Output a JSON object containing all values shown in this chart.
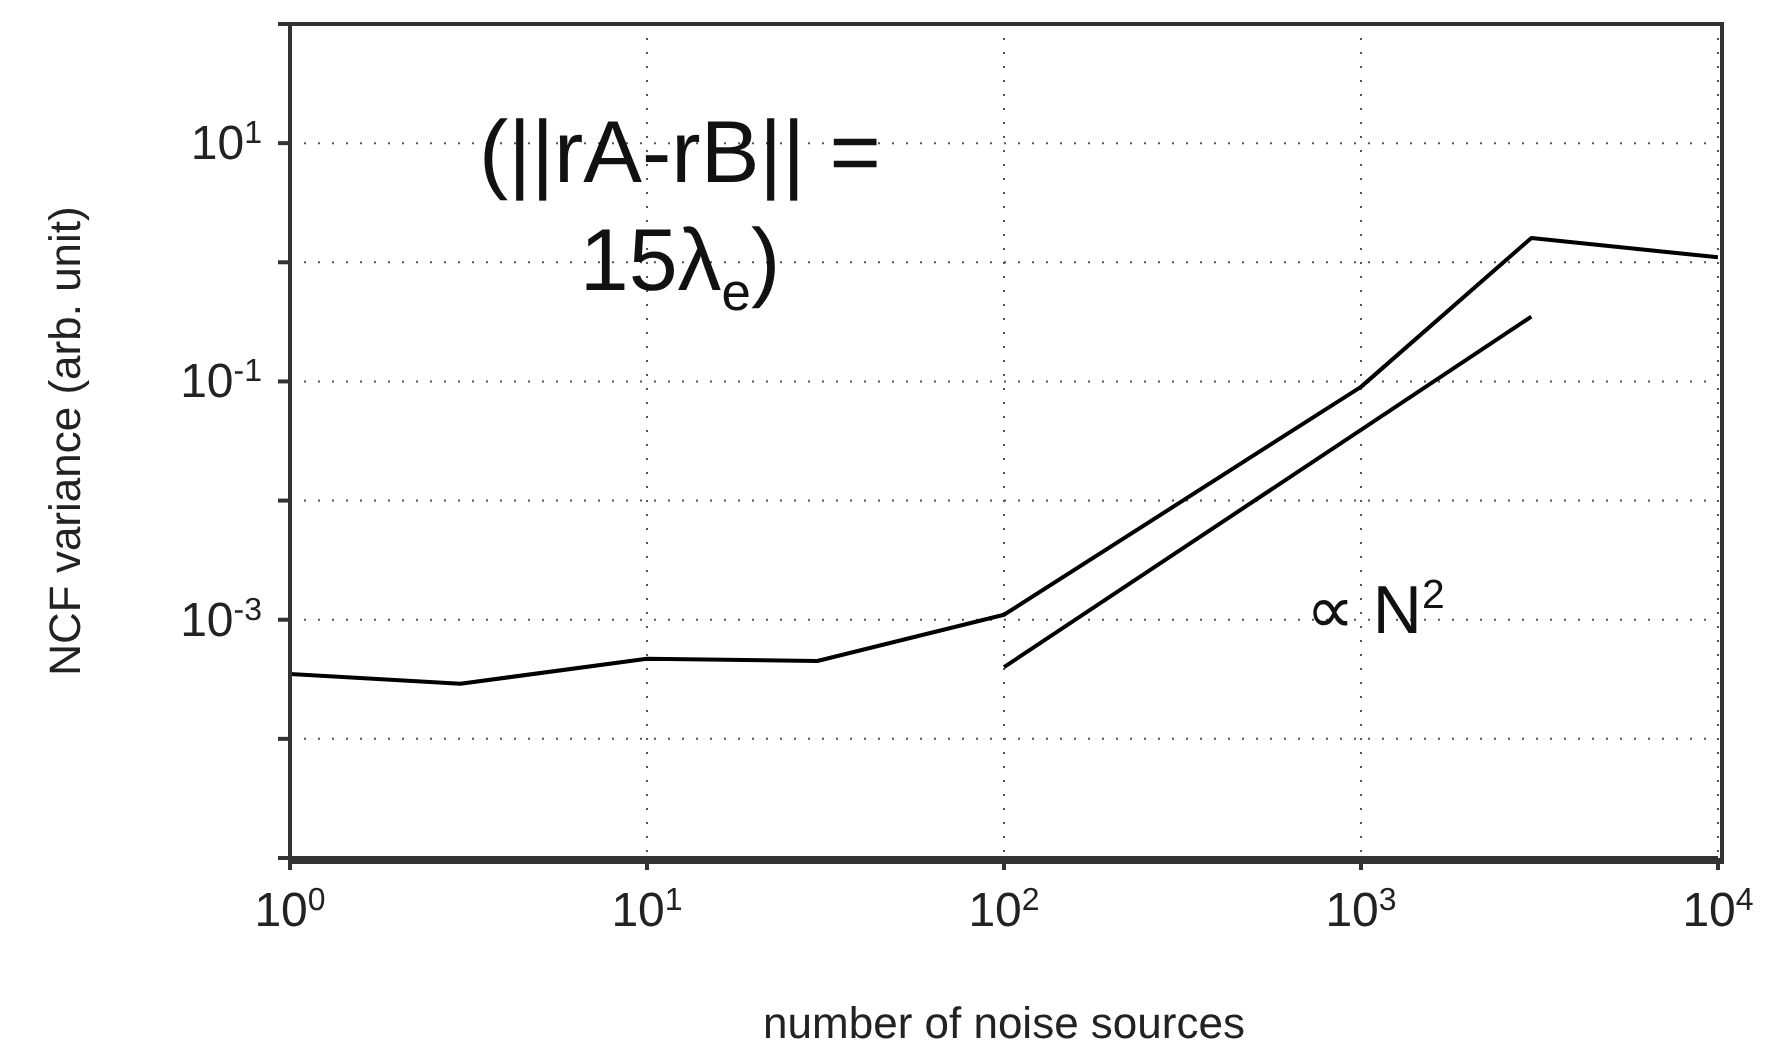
{
  "chart_data": {
    "type": "line",
    "xlabel": "number of noise sources",
    "ylabel": "NCF variance (arb. unit)",
    "log": "xy",
    "grid": true,
    "xlim": [
      1,
      10000
    ],
    "ylim": [
      1e-05,
      100
    ],
    "xticks": [
      {
        "value": 1,
        "label": "10$^{0}$"
      },
      {
        "value": 10,
        "label": "10$^{1}$"
      },
      {
        "value": 100,
        "label": "10$^{2}$"
      },
      {
        "value": 1000,
        "label": "10$^{3}$"
      },
      {
        "value": 10000,
        "label": "10$^{4}$"
      }
    ],
    "yticks": [
      {
        "value": 1e-05,
        "label": null
      },
      {
        "value": 0.0001,
        "label": null
      },
      {
        "value": 0.001,
        "label": "10$^{-3}$"
      },
      {
        "value": 0.01,
        "label": null
      },
      {
        "value": 0.1,
        "label": "10$^{-1}$"
      },
      {
        "value": 1,
        "label": null
      },
      {
        "value": 10,
        "label": "10$^{1}$"
      },
      {
        "value": 100,
        "label": null
      }
    ],
    "series": [
      {
        "color": "#000000",
        "x": [
          1,
          3,
          10,
          30,
          100,
          1000,
          3000,
          10000
        ],
        "values": [
          0.00035,
          0.00029,
          0.00047,
          0.00045,
          0.0011,
          0.09,
          1.6,
          1.1
        ]
      },
      {
        "type": "line",
        "color": "#000000",
        "x": [
          100,
          3000
        ],
        "values": [
          0.0004,
          0.35
        ]
      }
    ],
    "annotations": [
      "(||rA-rB|| = 15λ$_{e}$)",
      "∝ N$^{2}$"
    ]
  }
}
